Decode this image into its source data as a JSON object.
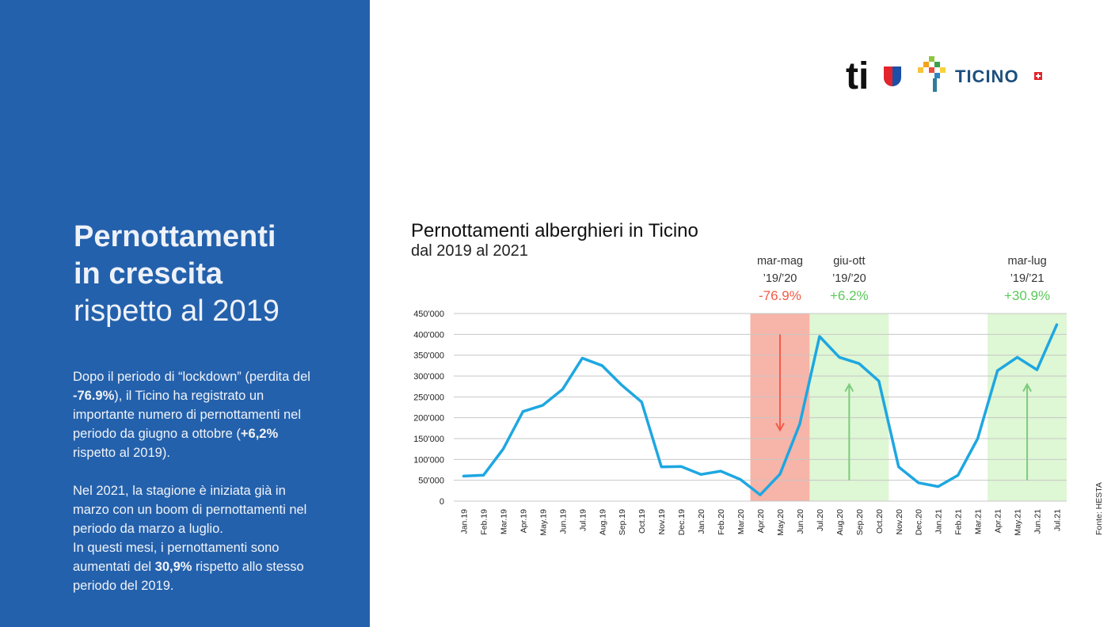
{
  "left_panel": {
    "headline_bold_1": "Pernottamenti",
    "headline_bold_2": "in crescita",
    "headline_light": "rispetto al 2019",
    "p1_a": "Dopo il periodo di “lockdown” (perdita del ",
    "p1_b": "-76.9%",
    "p1_c": "), il Ticino ha registrato un importante numero di pernottamenti nel periodo da giugno a ottobre (",
    "p1_d": "+6,2%",
    "p1_e": " rispetto al 2019).",
    "p2_a": "Nel 2021, la stagione è iniziata già in marzo con un boom di pernottamenti nel periodo da marzo a luglio.",
    "p2_b": "In questi mesi, i pernottamenti sono aumentati del ",
    "p2_c": "30,9%",
    "p2_d": " rispetto allo stesso periodo del 2019."
  },
  "logos": {
    "ti_text": "ti",
    "ticino_text": "TICINO"
  },
  "source": "Fonte: HESTA",
  "colors": {
    "panel_blue": "#2461ac",
    "line": "#1ea7e1",
    "red_band": "#f7b4a8",
    "green_band": "#def7d4",
    "red_text": "#f05a46",
    "green_text": "#5ac95a"
  },
  "chart_data": {
    "type": "line",
    "title": "Pernottamenti alberghieri in Ticino",
    "subtitle": "dal 2019 al 2021",
    "categories": [
      "Jan.19",
      "Feb.19",
      "Mar.19",
      "Apr.19",
      "May.19",
      "Jun.19",
      "Jul.19",
      "Aug.19",
      "Sep.19",
      "Oct.19",
      "Nov.19",
      "Dec.19",
      "Jan.20",
      "Feb.20",
      "Mar.20",
      "Apr.20",
      "May.20",
      "Jun.20",
      "Jul.20",
      "Aug.20",
      "Sep.20",
      "Oct.20",
      "Nov.20",
      "Dec.20",
      "Jan.21",
      "Feb.21",
      "Mar.21",
      "Apr.21",
      "May.21",
      "Jun.21",
      "Jul.21"
    ],
    "values": [
      60000,
      62000,
      125000,
      215000,
      230000,
      268000,
      343000,
      325000,
      278000,
      238000,
      82000,
      83000,
      64000,
      72000,
      52000,
      15000,
      65000,
      185000,
      395000,
      345000,
      330000,
      288000,
      82000,
      44000,
      35000,
      62000,
      150000,
      313000,
      345000,
      315000,
      423000
    ],
    "ylim": [
      0,
      450000
    ],
    "yticks": [
      0,
      50000,
      100000,
      150000,
      200000,
      250000,
      300000,
      350000,
      400000,
      450000
    ],
    "ytick_labels": [
      "0",
      "50'000",
      "100'000",
      "150'000",
      "200'000",
      "250'000",
      "300'000",
      "350'000",
      "400'000",
      "450'000"
    ],
    "grid": true,
    "annotations": [
      {
        "from": 15,
        "to": 17,
        "label": "mar-mag",
        "period": "’19/’20",
        "change": "-76.9%",
        "kind": "decrease"
      },
      {
        "from": 18,
        "to": 21,
        "label": "giu-ott",
        "period": "’19/’20",
        "change": "+6.2%",
        "kind": "increase"
      },
      {
        "from": 27,
        "to": 30,
        "label": "mar-lug",
        "period": "’19/’21",
        "change": "+30.9%",
        "kind": "increase"
      }
    ]
  }
}
